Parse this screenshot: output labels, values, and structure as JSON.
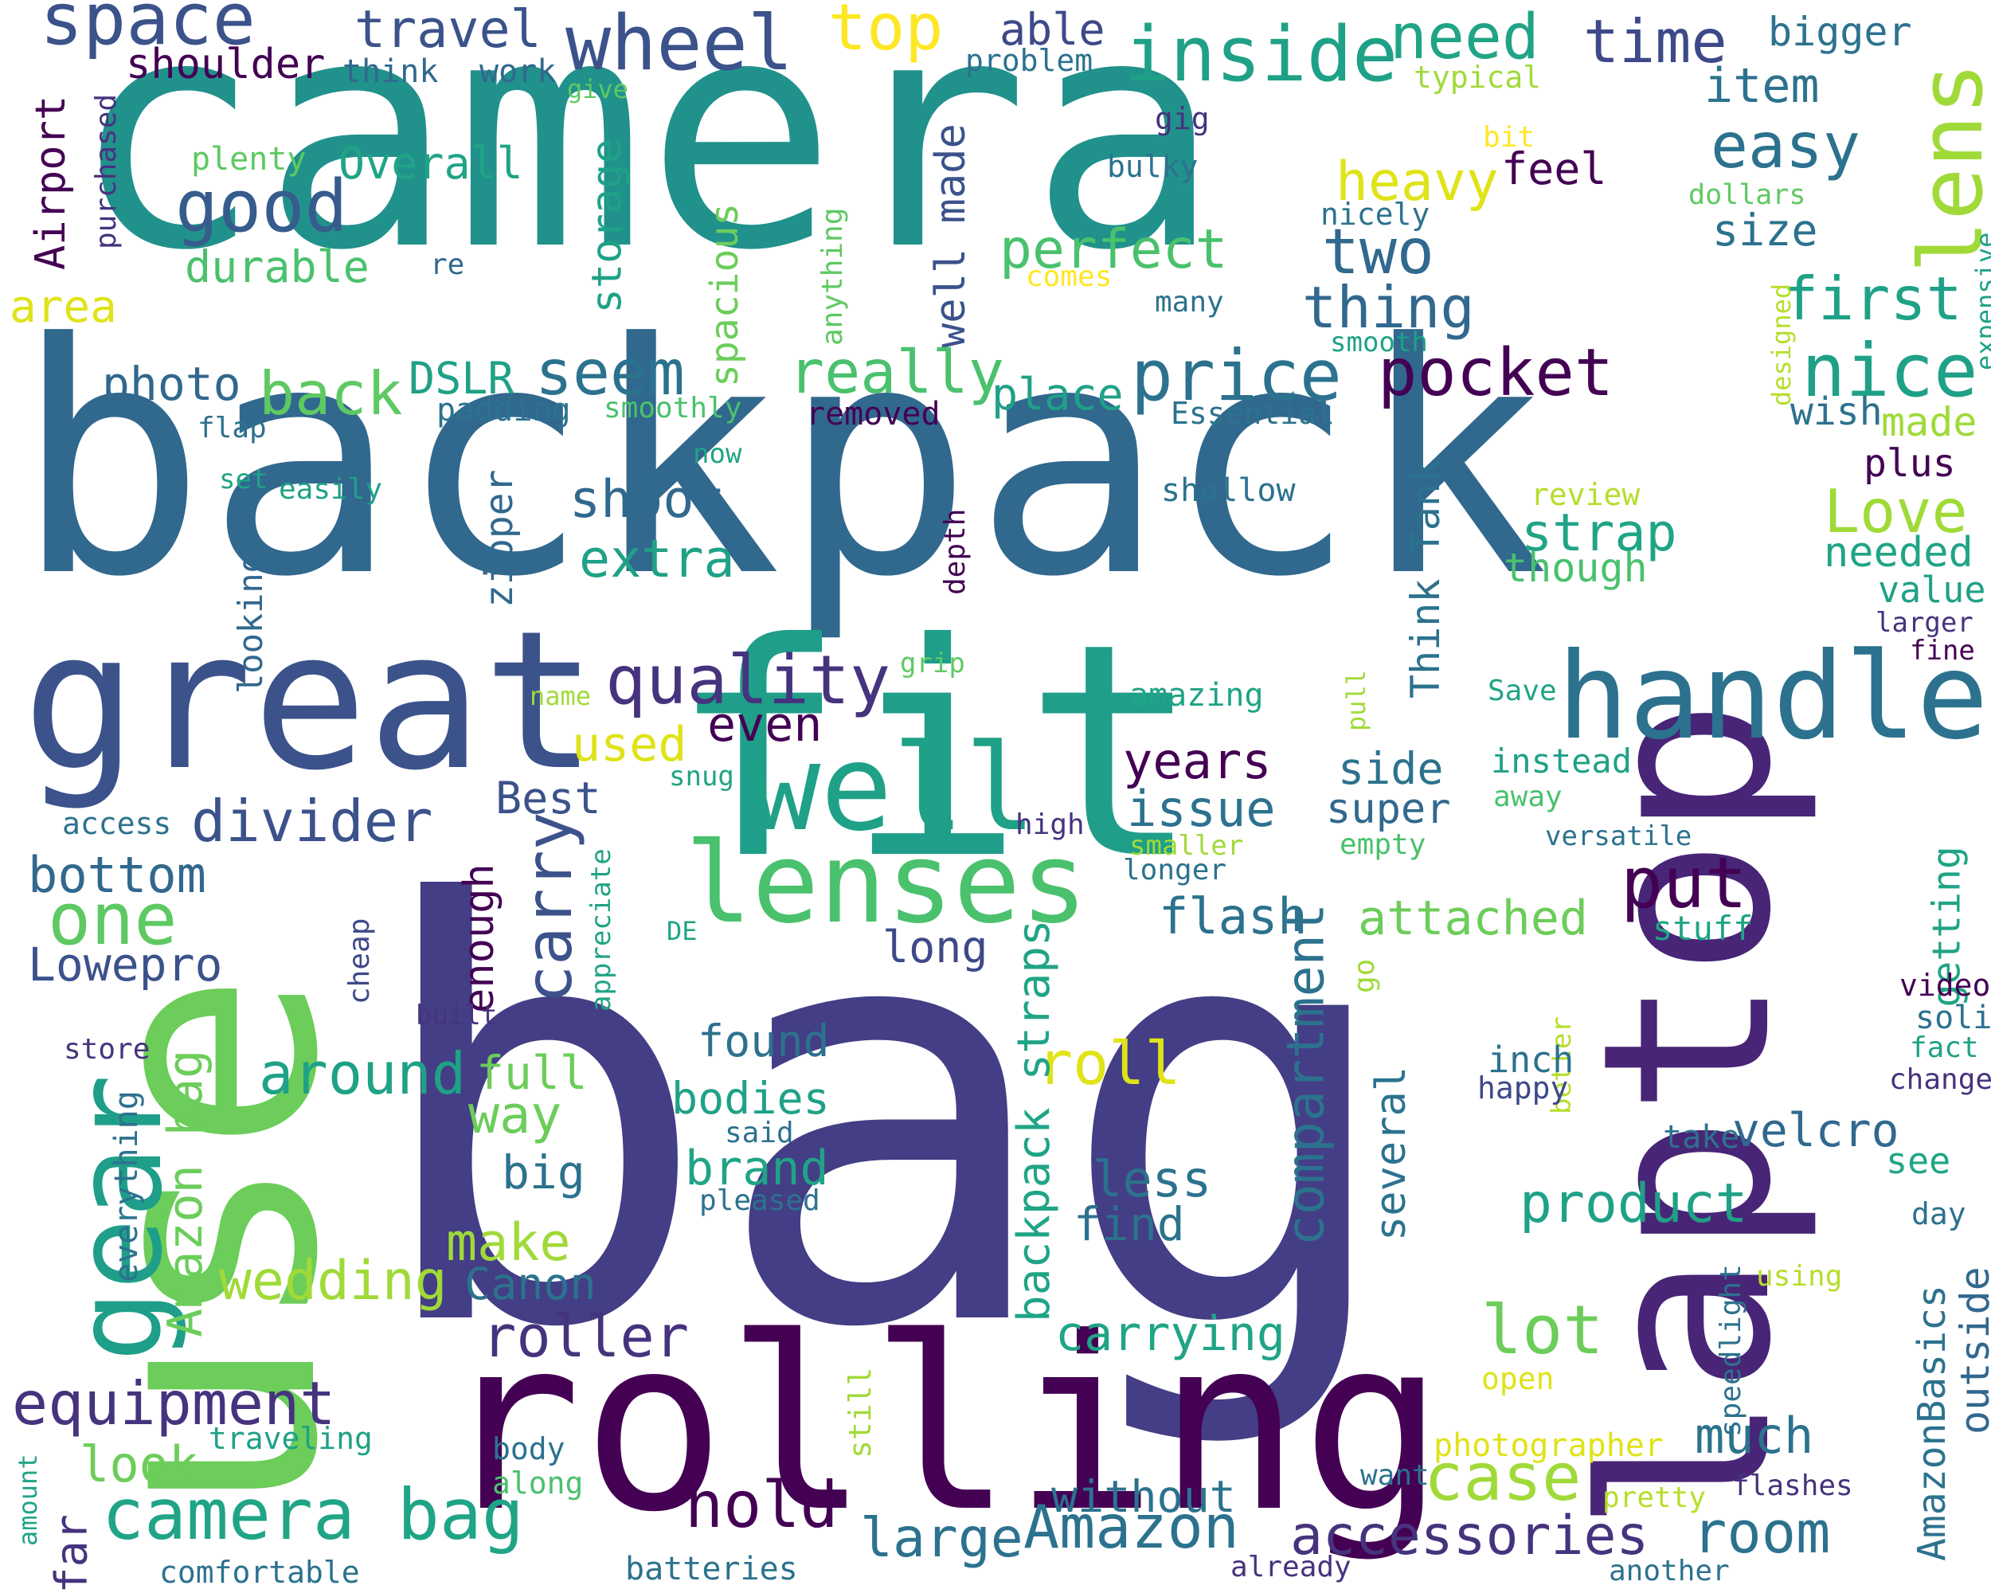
{
  "colors": {
    "background": "#ffffff",
    "palette": [
      "#440154",
      "#46317e",
      "#365a8c",
      "#277e8e",
      "#1fa187",
      "#4ac16d",
      "#a0da39",
      "#fde725"
    ]
  },
  "words": {
    "camera": "camera",
    "backpack": "backpack",
    "bag": "bag",
    "fit": "fit",
    "use": "use",
    "great": "great",
    "laptop": "laptop",
    "rolling": "rolling",
    "lenses": "lenses",
    "well": "well",
    "handle": "handle",
    "gear": "gear",
    "lens": "lens",
    "wheel": "wheel",
    "inside": "inside",
    "space": "space",
    "top": "top",
    "need": "need",
    "time": "time",
    "travel": "travel",
    "shoulder": "shoulder",
    "think": "think",
    "work": "work",
    "able": "able",
    "problem": "problem",
    "bigger": "bigger",
    "item": "item",
    "typical": "typical",
    "give": "give",
    "gig": "gig",
    "airport": "Airport",
    "purchased": "purchased",
    "plenty": "plenty",
    "overall": "Overall",
    "good": "good",
    "durable": "durable",
    "area": "area",
    "storage": "storage",
    "spacious": "spacious",
    "heavy": "heavy",
    "feel": "feel",
    "easy": "easy",
    "bit": "bit",
    "bulky": "bulky",
    "well_made": "well made",
    "anything": "anything",
    "nicely": "nicely",
    "re": "re",
    "perfect": "perfect",
    "comes": "comes",
    "two": "two",
    "thing": "thing",
    "first": "first",
    "size": "size",
    "dollars": "dollars",
    "designed": "designed",
    "expensive": "expensive",
    "many": "many",
    "smooth": "smooth",
    "really": "really",
    "price": "price",
    "pocket": "pocket",
    "nice": "nice",
    "photo": "photo",
    "back": "back",
    "dslr": "DSLR",
    "seem": "seem",
    "flap": "flap",
    "padding": "padding",
    "smoothly": "smoothly",
    "place": "place",
    "removed": "removed",
    "essential": "Essential",
    "wish": "wish",
    "made": "made",
    "plus": "plus",
    "set": "set",
    "easily": "easily",
    "now": "now",
    "shoot": "shoot",
    "shallow": "shallow",
    "review": "review",
    "love": "Love",
    "looking": "looking",
    "zipper": "zipper",
    "extra": "extra",
    "depth": "depth",
    "think_tank": "Think Tank",
    "strap": "strap",
    "though": "though",
    "needed": "needed",
    "value": "value",
    "larger": "larger",
    "fine": "fine",
    "grip": "grip",
    "quality": "quality",
    "name": "name",
    "amazing": "amazing",
    "save": "Save",
    "pull": "pull",
    "even": "even",
    "used": "used",
    "snug": "snug",
    "years": "years",
    "side": "side",
    "instead": "instead",
    "divider": "divider",
    "best": "Best",
    "issue": "issue",
    "super": "super",
    "away": "away",
    "access": "access",
    "high": "high",
    "versatile": "versatile",
    "smaller": "smaller",
    "empty": "empty",
    "enough": "enough",
    "one": "one",
    "bottom": "bottom",
    "carry": "carry",
    "appreciate": "appreciate",
    "put": "put",
    "longer": "longer",
    "getting": "getting",
    "flash": "flash",
    "attached": "attached",
    "cheap": "cheap",
    "lowepro": "Lowepro",
    "de": "DE",
    "long": "long",
    "stuff": "stuff",
    "go": "go",
    "built": "built",
    "video": "video",
    "amazon_bag": "Amazon bag",
    "solid": "solid",
    "store": "store",
    "found": "found",
    "roll": "roll",
    "better": "better",
    "fact": "fact",
    "around": "around",
    "full": "full",
    "compartment": "compartment",
    "several": "several",
    "inch": "inch",
    "change": "change",
    "everything": "everything",
    "happy": "happy",
    "way": "way",
    "bodies": "bodies",
    "velcro": "velcro",
    "said": "said",
    "take": "take",
    "backpack_straps": "backpack straps",
    "brand": "brand",
    "big": "big",
    "see": "see",
    "less": "less",
    "pleased": "pleased",
    "product": "product",
    "day": "day",
    "find": "find",
    "speedlight": "speedlight",
    "make": "make",
    "using": "using",
    "wedding": "wedding",
    "canon": "Canon",
    "amazonbasics": "AmazonBasics",
    "outside": "outside",
    "lot": "lot",
    "roller": "roller",
    "carrying": "carrying",
    "equipment": "equipment",
    "open": "open",
    "still": "still",
    "much": "much",
    "look": "look",
    "traveling": "traveling",
    "body": "body",
    "want": "want",
    "photographer": "photographer",
    "flashes": "flashes",
    "amount": "amount",
    "along": "along",
    "case": "case",
    "pretty": "pretty",
    "camera_bag": "camera bag",
    "hold": "hold",
    "without": "without",
    "room": "room",
    "far": "far",
    "large": "large",
    "amazon": "Amazon",
    "accessories": "accessories",
    "comfortable": "comfortable",
    "batteries": "batteries",
    "already": "already",
    "another": "another"
  }
}
